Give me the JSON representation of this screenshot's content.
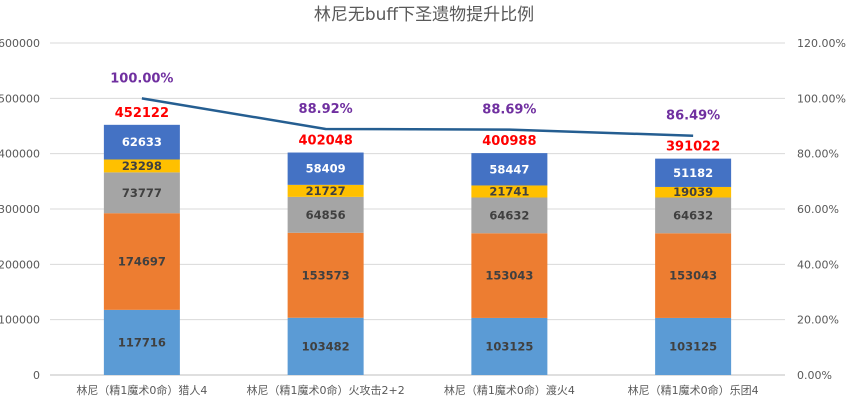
{
  "chart_data": {
    "type": "bar",
    "stacked": true,
    "title": "林尼无buff下圣遗物提升比例",
    "categories": [
      "林尼（精1魔术0命）猎人4",
      "林尼（精1魔术0命）火攻击2+2",
      "林尼（精1魔术0命）渡火4",
      "林尼（精1魔术0命）乐团4"
    ],
    "series": [
      {
        "color": "#5b9bd5",
        "values": [
          117716,
          103482,
          103125,
          103125
        ]
      },
      {
        "color": "#ed7d31",
        "values": [
          174697,
          153573,
          153043,
          153043
        ]
      },
      {
        "color": "#a5a5a5",
        "values": [
          73777,
          64856,
          64632,
          64632
        ]
      },
      {
        "color": "#ffc000",
        "values": [
          23298,
          21727,
          21741,
          19039
        ]
      },
      {
        "color": "#4472c4",
        "values": [
          62633,
          58409,
          58447,
          51182
        ]
      }
    ],
    "totals": {
      "color": "#ff0000",
      "labels": [
        "452122",
        "402048",
        "400988",
        "391022"
      ]
    },
    "line": {
      "color": "#255e91",
      "label_color": "#7030a0",
      "values": [
        100.0,
        88.92,
        88.69,
        86.49
      ],
      "labels": [
        "100.00%",
        "88.92%",
        "88.69%",
        "86.49%"
      ]
    },
    "ylim": [
      0,
      600000
    ],
    "y_ticks": [
      0,
      100000,
      200000,
      300000,
      400000,
      500000,
      600000
    ],
    "y2lim": [
      0,
      120
    ],
    "y2_ticks": [
      "0.00%",
      "20.00%",
      "40.00%",
      "60.00%",
      "80.00%",
      "100.00%",
      "120.00%"
    ],
    "grid": true,
    "legend": "none"
  }
}
